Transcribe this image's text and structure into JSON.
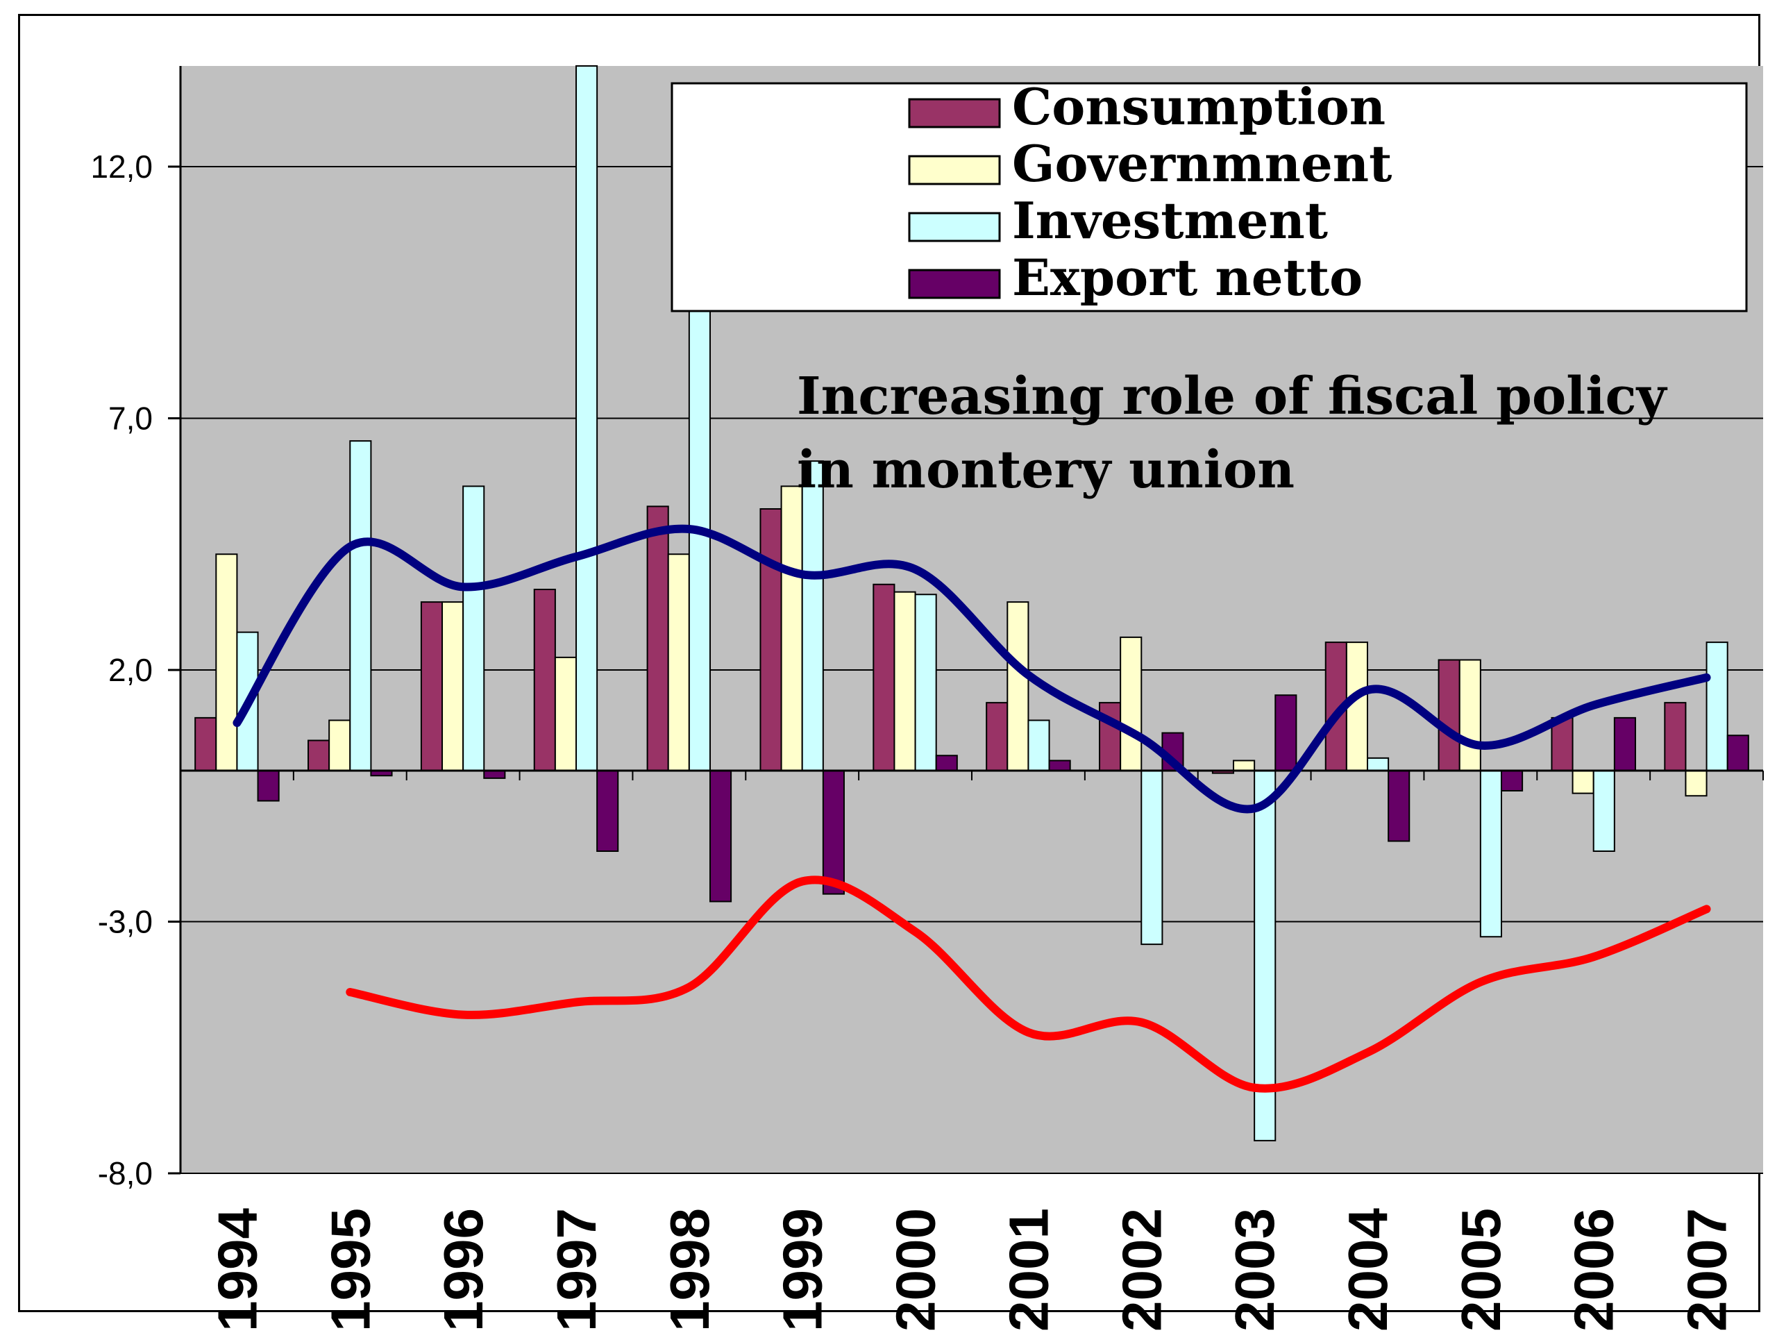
{
  "chart_data": {
    "type": "bar",
    "categories": [
      "1994",
      "1995",
      "1996",
      "1997",
      "1998",
      "1999",
      "2000",
      "2001",
      "2002",
      "2003",
      "2004",
      "2005",
      "2006",
      "2007"
    ],
    "ylim": [
      -8,
      14
    ],
    "yticks": [
      12,
      7,
      2,
      -3,
      -8
    ],
    "ytick_labels": [
      "12,0",
      "7,0",
      "2,0",
      "-3,0",
      "-8,0"
    ],
    "grid": true,
    "legend_position": "top-right",
    "series": [
      {
        "name": "Consumption",
        "color": "#993366",
        "values": [
          1.05,
          0.6,
          3.35,
          3.6,
          5.25,
          5.2,
          3.7,
          1.35,
          1.35,
          -0.05,
          2.55,
          2.2,
          1.05,
          1.35
        ]
      },
      {
        "name": "Governmnent",
        "color": "#FFFFCC",
        "values": [
          4.3,
          1.0,
          3.35,
          2.25,
          4.3,
          5.65,
          3.55,
          3.35,
          2.65,
          0.2,
          2.55,
          2.2,
          -0.45,
          -0.5
        ]
      },
      {
        "name": "Investment",
        "color": "#CCFFFF",
        "values": [
          2.75,
          6.55,
          5.65,
          14.0,
          9.2,
          6.15,
          3.5,
          1.0,
          -3.45,
          -7.35,
          0.25,
          -3.3,
          -1.6,
          2.55
        ]
      },
      {
        "name": "Export netto",
        "color": "#660066",
        "values": [
          -0.6,
          -0.1,
          -0.15,
          -1.6,
          -2.6,
          -2.45,
          0.3,
          0.2,
          0.75,
          1.5,
          -1.4,
          -0.4,
          1.05,
          0.7
        ]
      }
    ],
    "lines": [
      {
        "color": "#000080",
        "points": [
          [
            0,
            0.95
          ],
          [
            1,
            4.45
          ],
          [
            2,
            3.65
          ],
          [
            3,
            4.25
          ],
          [
            4,
            4.8
          ],
          [
            5,
            3.9
          ],
          [
            6,
            4.0
          ],
          [
            7,
            1.9
          ],
          [
            8,
            0.65
          ],
          [
            9,
            -0.75
          ],
          [
            10,
            1.6
          ],
          [
            11,
            0.5
          ],
          [
            12,
            1.3
          ],
          [
            13,
            1.85
          ]
        ]
      },
      {
        "color": "#FF0000",
        "points": [
          [
            1,
            -4.4
          ],
          [
            2,
            -4.85
          ],
          [
            3,
            -4.6
          ],
          [
            4,
            -4.3
          ],
          [
            5,
            -2.2
          ],
          [
            6,
            -3.2
          ],
          [
            7,
            -5.2
          ],
          [
            8,
            -5.0
          ],
          [
            9,
            -6.3
          ],
          [
            10,
            -5.6
          ],
          [
            11,
            -4.2
          ],
          [
            12,
            -3.7
          ],
          [
            13,
            -2.75
          ]
        ]
      }
    ],
    "annotation": {
      "lines": [
        "Increasing role of fiscal policy",
        " in montery union"
      ]
    }
  }
}
